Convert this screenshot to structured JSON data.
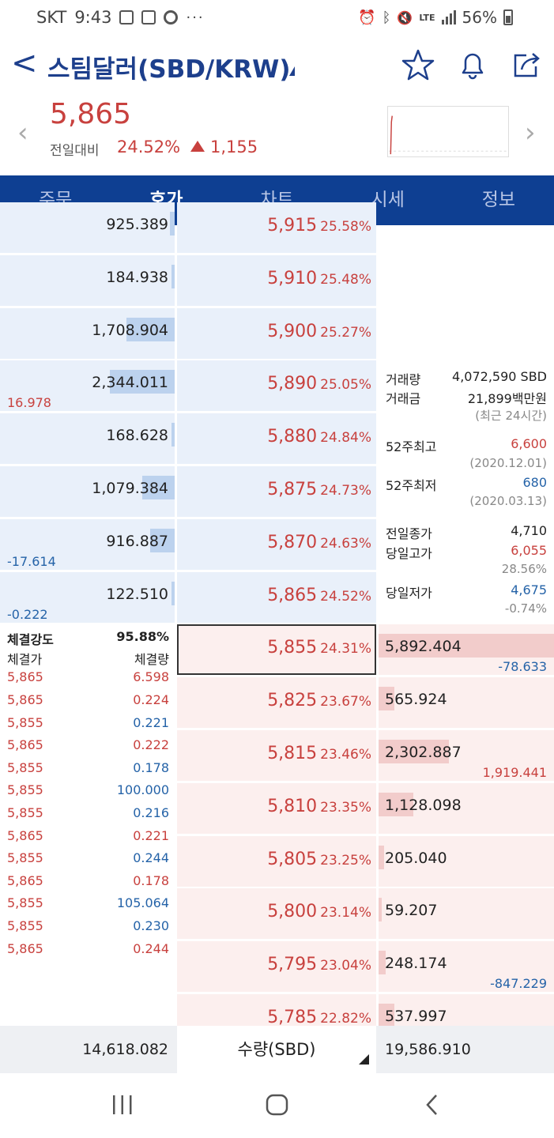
{
  "status": {
    "carrier": "SKT",
    "time": "9:43",
    "battery": "56%",
    "dots": "···",
    "lte": "LTE"
  },
  "header": {
    "back": "<",
    "title": "스팀달러(SBD/KRW)"
  },
  "quote": {
    "price": "5,865",
    "change_label": "전일대비",
    "change_pct": "24.52%",
    "change_abs": "1,155"
  },
  "tabs": [
    {
      "label": "주문",
      "active": false
    },
    {
      "label": "호가",
      "active": true
    },
    {
      "label": "차트",
      "active": false
    },
    {
      "label": "시세",
      "active": false
    },
    {
      "label": "정보",
      "active": false
    }
  ],
  "asks": [
    {
      "price": "5,915",
      "pct": "25.58%",
      "qty": "925.389",
      "fill": 0.03
    },
    {
      "price": "5,910",
      "pct": "25.48%",
      "qty": "184.938",
      "fill": 0.02
    },
    {
      "price": "5,900",
      "pct": "25.27%",
      "qty": "1,708.904",
      "fill": 0.3
    },
    {
      "price": "5,890",
      "pct": "25.05%",
      "qty": "2,344.011",
      "fill": 0.4
    },
    {
      "price": "5,880",
      "pct": "24.84%",
      "qty": "168.628",
      "fill": 0.02
    },
    {
      "price": "5,875",
      "pct": "24.73%",
      "qty": "1,079.384",
      "fill": 0.2
    },
    {
      "price": "5,870",
      "pct": "24.63%",
      "qty": "916.887",
      "fill": 0.15
    },
    {
      "price": "5,865",
      "pct": "24.52%",
      "qty": "122.510",
      "fill": 0.02
    }
  ],
  "ask_diffs": [
    {
      "row": 3,
      "value": "16.978",
      "color": "red"
    },
    {
      "row": 6,
      "value": "-17.614",
      "color": "blue"
    },
    {
      "row": 7,
      "value": "-0.222",
      "color": "blue"
    }
  ],
  "bids": [
    {
      "price": "5,855",
      "pct": "24.31%",
      "qty": "5,892.404",
      "fill": 1.0
    },
    {
      "price": "5,825",
      "pct": "23.67%",
      "qty": "565.924",
      "fill": 0.09
    },
    {
      "price": "5,815",
      "pct": "23.46%",
      "qty": "2,302.887",
      "fill": 0.4
    },
    {
      "price": "5,810",
      "pct": "23.35%",
      "qty": "1,128.098",
      "fill": 0.2
    },
    {
      "price": "5,805",
      "pct": "23.25%",
      "qty": "205.040",
      "fill": 0.03
    },
    {
      "price": "5,800",
      "pct": "23.14%",
      "qty": "59.207",
      "fill": 0.01
    },
    {
      "price": "5,795",
      "pct": "23.04%",
      "qty": "248.174",
      "fill": 0.04
    },
    {
      "price": "5,785",
      "pct": "22.82%",
      "qty": "537.997",
      "fill": 0.09
    }
  ],
  "bid_diffs": [
    {
      "row": 0,
      "value": "-78.633",
      "color": "blue"
    },
    {
      "row": 2,
      "value": "1,919.441",
      "color": "red"
    },
    {
      "row": 6,
      "value": "-847.229",
      "color": "blue"
    }
  ],
  "info": {
    "volume_label": "거래량",
    "volume": "4,072,590 SBD",
    "amount_label": "거래금",
    "amount": "21,899백만원",
    "period_note": "(최근 24시간)",
    "high52_label": "52주최고",
    "high52": "6,600",
    "high52_date": "(2020.12.01)",
    "low52_label": "52주최저",
    "low52": "680",
    "low52_date": "(2020.03.13)",
    "prev_close_label": "전일종가",
    "prev_close": "4,710",
    "day_high_label": "당일고가",
    "day_high": "6,055",
    "day_high_pct": "28.56%",
    "day_low_label": "당일저가",
    "day_low": "4,675",
    "day_low_pct": "-0.74%"
  },
  "ticks": {
    "strength_label": "체결강도",
    "strength": "95.88%",
    "price_header": "체결가",
    "qty_header": "체결량",
    "rows": [
      {
        "price": "5,865",
        "qty": "6.598",
        "color": "red"
      },
      {
        "price": "5,865",
        "qty": "0.224",
        "color": "red"
      },
      {
        "price": "5,855",
        "qty": "0.221",
        "color": "blue"
      },
      {
        "price": "5,865",
        "qty": "0.222",
        "color": "red"
      },
      {
        "price": "5,855",
        "qty": "0.178",
        "color": "blue"
      },
      {
        "price": "5,855",
        "qty": "100.000",
        "color": "blue"
      },
      {
        "price": "5,855",
        "qty": "0.216",
        "color": "blue"
      },
      {
        "price": "5,865",
        "qty": "0.221",
        "color": "red"
      },
      {
        "price": "5,855",
        "qty": "0.244",
        "color": "blue"
      },
      {
        "price": "5,865",
        "qty": "0.178",
        "color": "red"
      },
      {
        "price": "5,855",
        "qty": "105.064",
        "color": "blue"
      },
      {
        "price": "5,855",
        "qty": "0.230",
        "color": "blue"
      },
      {
        "price": "5,865",
        "qty": "0.244",
        "color": "red"
      }
    ]
  },
  "footer": {
    "ask_total": "14,618.082",
    "unit_label": "수량(SBD)",
    "bid_total": "19,586.910"
  },
  "colors": {
    "accent": "#0e3f92",
    "up": "#c8413e",
    "down": "#2563a8",
    "ask_bg": "#e9f0fa",
    "bid_bg": "#fcefee"
  }
}
